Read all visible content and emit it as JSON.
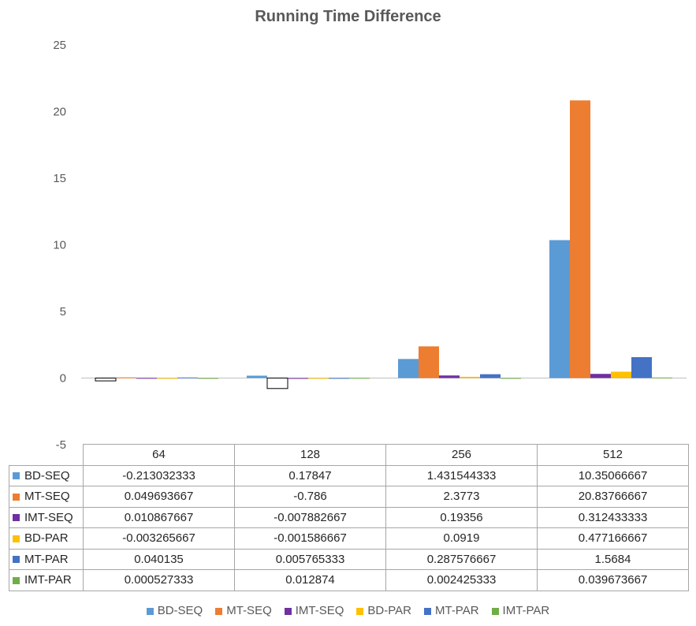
{
  "chart_data": {
    "type": "bar",
    "title": "Running Time Difference",
    "categories": [
      "64",
      "128",
      "256",
      "512"
    ],
    "ylim": [
      -5,
      25
    ],
    "yticks": [
      -5,
      0,
      5,
      10,
      15,
      20,
      25
    ],
    "grid": false,
    "legend_position": "bottom",
    "data_table": true,
    "series": [
      {
        "name": "BD-SEQ",
        "color": "#5b9bd5",
        "values": [
          -0.213032333,
          0.17847,
          1.431544333,
          10.35066667
        ],
        "labels": [
          "-0.213032333",
          "0.17847",
          "1.431544333",
          "10.35066667"
        ]
      },
      {
        "name": "MT-SEQ",
        "color": "#ed7d31",
        "values": [
          0.049693667,
          -0.786,
          2.3773,
          20.83766667
        ],
        "labels": [
          "0.049693667",
          "-0.786",
          "2.3773",
          "20.83766667"
        ]
      },
      {
        "name": "IMT-SEQ",
        "color": "#7030a0",
        "values": [
          0.010867667,
          -0.007882667,
          0.19356,
          0.312433333
        ],
        "labels": [
          "0.010867667",
          "-0.007882667",
          "0.19356",
          "0.312433333"
        ]
      },
      {
        "name": "BD-PAR",
        "color": "#ffc000",
        "values": [
          -0.003265667,
          -0.001586667,
          0.0919,
          0.477166667
        ],
        "labels": [
          "-0.003265667",
          "-0.001586667",
          "0.0919",
          "0.477166667"
        ]
      },
      {
        "name": "MT-PAR",
        "color": "#4472c4",
        "values": [
          0.040135,
          0.005765333,
          0.287576667,
          1.5684
        ],
        "labels": [
          "0.040135",
          "0.005765333",
          "0.287576667",
          "1.5684"
        ]
      },
      {
        "name": "IMT-PAR",
        "color": "#70ad47",
        "values": [
          0.000527333,
          0.012874,
          0.002425333,
          0.039673667
        ],
        "labels": [
          "0.000527333",
          "0.012874",
          "0.002425333",
          "0.039673667"
        ]
      }
    ]
  }
}
